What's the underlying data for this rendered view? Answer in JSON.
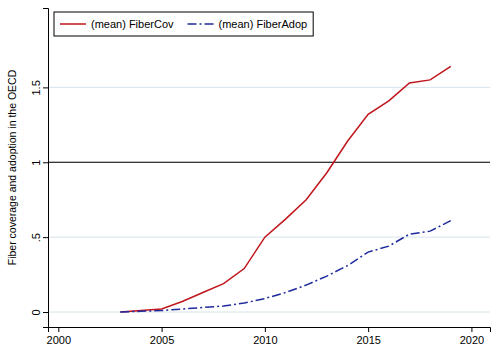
{
  "chart_data": {
    "type": "line",
    "ylabel": "Fiber coverage and adoption in the OECD",
    "x": [
      2003,
      2004,
      2005,
      2006,
      2007,
      2008,
      2009,
      2010,
      2011,
      2012,
      2013,
      2014,
      2015,
      2016,
      2017,
      2018,
      2019
    ],
    "series": [
      {
        "name": "(mean) FiberCov",
        "color": "#c0151b",
        "line_style": "solid",
        "values": [
          0,
          0.01,
          0.02,
          0.07,
          0.13,
          0.19,
          0.29,
          0.5,
          0.62,
          0.75,
          0.93,
          1.14,
          1.32,
          1.41,
          1.53,
          1.55,
          1.64
        ]
      },
      {
        "name": "(mean) FiberAdop",
        "color": "#1f2a9c",
        "line_style": "dashdot",
        "values": [
          0,
          0.005,
          0.01,
          0.02,
          0.03,
          0.04,
          0.06,
          0.09,
          0.13,
          0.18,
          0.24,
          0.31,
          0.4,
          0.44,
          0.52,
          0.54,
          0.61
        ]
      }
    ],
    "xlim": [
      1999.5,
      2020.9
    ],
    "ylim": [
      -0.1,
      2.03
    ],
    "xticks": [
      2000,
      2005,
      2010,
      2015,
      2020
    ],
    "yticks": [
      0,
      {
        "value": 0.5,
        "label": ".5"
      },
      1,
      1.5
    ],
    "grid": true,
    "legend": "top-left",
    "reference_lines": [
      1
    ]
  }
}
